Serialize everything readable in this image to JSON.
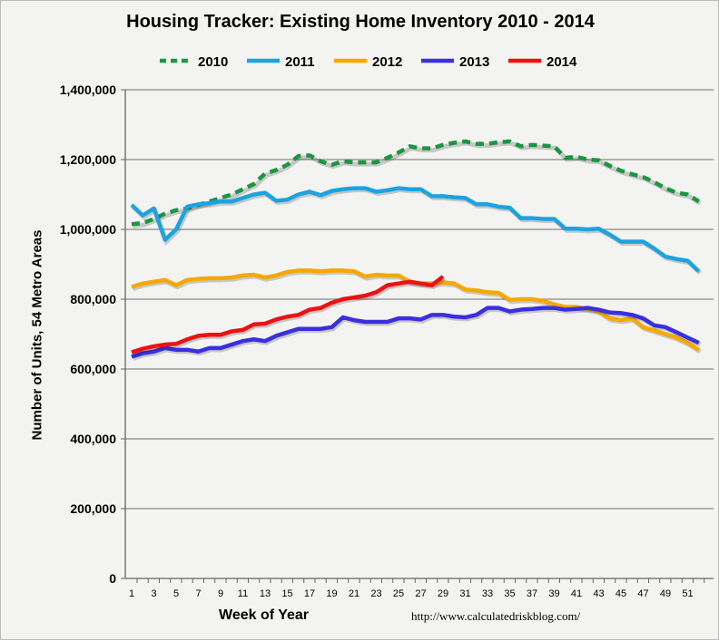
{
  "chart_data": {
    "type": "line",
    "title": "Housing Tracker: Existing Home Inventory 2010 - 2014",
    "xlabel": "Week of Year",
    "ylabel": "Number of Units, 54 Metro Areas",
    "source": "http://www.calculatedriskblog.com/",
    "ylim": [
      0,
      1400000
    ],
    "xlim": [
      1,
      52
    ],
    "y_ticks": [
      "0",
      "200,000",
      "400,000",
      "600,000",
      "800,000",
      "1,000,000",
      "1,200,000",
      "1,400,000"
    ],
    "x_ticks": [
      "1",
      "3",
      "5",
      "7",
      "9",
      "11",
      "13",
      "15",
      "17",
      "19",
      "21",
      "23",
      "25",
      "27",
      "29",
      "31",
      "33",
      "35",
      "37",
      "39",
      "41",
      "43",
      "45",
      "47",
      "49",
      "51"
    ],
    "grid": "horizontal",
    "legend": "top",
    "series": [
      {
        "name": "2010",
        "color": "#1a9641",
        "dashed": true,
        "values": [
          1015000,
          1018000,
          1030000,
          1045000,
          1055000,
          1060000,
          1070000,
          1080000,
          1090000,
          1100000,
          1115000,
          1130000,
          1160000,
          1170000,
          1185000,
          1210000,
          1212000,
          1195000,
          1185000,
          1195000,
          1192000,
          1192000,
          1192000,
          1205000,
          1220000,
          1238000,
          1232000,
          1232000,
          1242000,
          1248000,
          1252000,
          1245000,
          1245000,
          1250000,
          1252000,
          1238000,
          1242000,
          1240000,
          1238000,
          1205000,
          1208000,
          1200000,
          1198000,
          1182000,
          1168000,
          1158000,
          1150000,
          1135000,
          1118000,
          1105000,
          1100000,
          1080000
        ]
      },
      {
        "name": "2011",
        "color": "#1ca3e0",
        "values": [
          1070000,
          1040000,
          1060000,
          970000,
          1000000,
          1065000,
          1072000,
          1075000,
          1080000,
          1080000,
          1090000,
          1100000,
          1105000,
          1082000,
          1085000,
          1100000,
          1108000,
          1098000,
          1110000,
          1115000,
          1118000,
          1118000,
          1108000,
          1112000,
          1118000,
          1115000,
          1115000,
          1095000,
          1095000,
          1092000,
          1090000,
          1072000,
          1072000,
          1065000,
          1062000,
          1032000,
          1032000,
          1030000,
          1030000,
          1002000,
          1002000,
          1000000,
          1002000,
          985000,
          965000,
          965000,
          965000,
          945000,
          922000,
          915000,
          910000,
          880000
        ]
      },
      {
        "name": "2012",
        "color": "#f5a800",
        "values": [
          835000,
          845000,
          850000,
          855000,
          840000,
          855000,
          858000,
          860000,
          860000,
          862000,
          868000,
          870000,
          862000,
          868000,
          878000,
          882000,
          882000,
          880000,
          882000,
          882000,
          880000,
          865000,
          870000,
          868000,
          868000,
          850000,
          845000,
          845000,
          848000,
          845000,
          828000,
          825000,
          820000,
          818000,
          798000,
          800000,
          800000,
          795000,
          785000,
          778000,
          778000,
          772000,
          765000,
          745000,
          740000,
          745000,
          720000,
          710000,
          700000,
          690000,
          675000,
          655000
        ]
      },
      {
        "name": "2013",
        "color": "#3a2fe0",
        "values": [
          635000,
          645000,
          650000,
          660000,
          655000,
          655000,
          650000,
          660000,
          660000,
          670000,
          680000,
          685000,
          680000,
          695000,
          705000,
          715000,
          715000,
          715000,
          720000,
          748000,
          740000,
          735000,
          735000,
          735000,
          745000,
          745000,
          742000,
          755000,
          755000,
          750000,
          748000,
          755000,
          775000,
          775000,
          765000,
          770000,
          772000,
          775000,
          775000,
          770000,
          772000,
          775000,
          770000,
          762000,
          760000,
          755000,
          745000,
          725000,
          720000,
          705000,
          690000,
          675000
        ]
      },
      {
        "name": "2014",
        "color": "#ee1111",
        "values": [
          648000,
          658000,
          665000,
          670000,
          672000,
          685000,
          695000,
          698000,
          698000,
          708000,
          712000,
          728000,
          730000,
          742000,
          750000,
          755000,
          770000,
          775000,
          790000,
          800000,
          805000,
          810000,
          820000,
          840000,
          845000,
          850000,
          845000,
          840000,
          865000
        ]
      }
    ]
  }
}
